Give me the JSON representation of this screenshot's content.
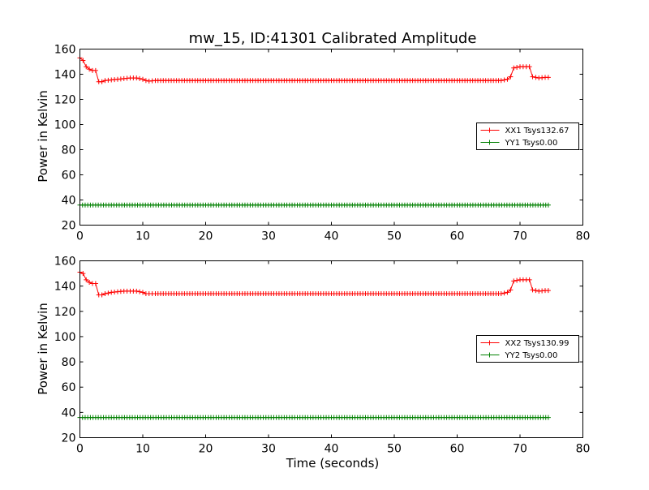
{
  "chart_data": [
    {
      "type": "line",
      "title": "mw_15, ID:41301 Calibrated Amplitude",
      "xlabel": "",
      "ylabel": "Power in Kelvin",
      "xlim": [
        0,
        80
      ],
      "ylim": [
        20,
        160
      ],
      "xticks": [
        "0",
        "10",
        "20",
        "30",
        "40",
        "50",
        "60",
        "70",
        "80"
      ],
      "yticks": [
        "20",
        "40",
        "60",
        "80",
        "100",
        "120",
        "140",
        "160"
      ],
      "grid": false,
      "legend_position": "center-right",
      "marker": "plus",
      "series": [
        {
          "name": "XX1 Tsys132.67",
          "color": "#ff0000",
          "points": [
            [
              0.0,
              153
            ],
            [
              0.5,
              151
            ],
            [
              1.0,
              146
            ],
            [
              1.5,
              144
            ],
            [
              2.0,
              143
            ],
            [
              2.5,
              143
            ],
            [
              3.0,
              134
            ],
            [
              3.5,
              134
            ],
            [
              4.0,
              135
            ],
            [
              5.0,
              135.5
            ],
            [
              6.0,
              136
            ],
            [
              7.0,
              136.5
            ],
            [
              8.0,
              137
            ],
            [
              9.0,
              137
            ],
            [
              10.0,
              136
            ],
            [
              10.5,
              135
            ],
            [
              11.0,
              134.5
            ],
            [
              12.0,
              135
            ],
            [
              20.0,
              135
            ],
            [
              30.0,
              135
            ],
            [
              40.0,
              135
            ],
            [
              50.0,
              135
            ],
            [
              60.0,
              135
            ],
            [
              67.0,
              135
            ],
            [
              68.0,
              136
            ],
            [
              68.5,
              138
            ],
            [
              69.0,
              145
            ],
            [
              70.0,
              146
            ],
            [
              71.0,
              146
            ],
            [
              71.5,
              146
            ],
            [
              72.0,
              138
            ],
            [
              73.0,
              137
            ],
            [
              74.0,
              137.5
            ],
            [
              74.5,
              137.5
            ]
          ]
        },
        {
          "name": "YY1 Tsys0.00",
          "color": "#008000",
          "points": [
            [
              0.0,
              36
            ],
            [
              10.0,
              36
            ],
            [
              20.0,
              36
            ],
            [
              30.0,
              36
            ],
            [
              40.0,
              36
            ],
            [
              50.0,
              36
            ],
            [
              60.0,
              36
            ],
            [
              70.0,
              36
            ],
            [
              74.5,
              36
            ]
          ]
        }
      ]
    },
    {
      "type": "line",
      "title": "",
      "xlabel": "Time (seconds)",
      "ylabel": "Power in Kelvin",
      "xlim": [
        0,
        80
      ],
      "ylim": [
        20,
        160
      ],
      "xticks": [
        "0",
        "10",
        "20",
        "30",
        "40",
        "50",
        "60",
        "70",
        "80"
      ],
      "yticks": [
        "20",
        "40",
        "60",
        "80",
        "100",
        "120",
        "140",
        "160"
      ],
      "grid": false,
      "legend_position": "center-right",
      "marker": "plus",
      "series": [
        {
          "name": "XX2 Tsys130.99",
          "color": "#ff0000",
          "points": [
            [
              0.0,
              151
            ],
            [
              0.5,
              150
            ],
            [
              1.0,
              145
            ],
            [
              1.5,
              143
            ],
            [
              2.0,
              142
            ],
            [
              2.5,
              142
            ],
            [
              3.0,
              133
            ],
            [
              3.5,
              133
            ],
            [
              4.0,
              134
            ],
            [
              5.0,
              135
            ],
            [
              6.0,
              135.5
            ],
            [
              7.0,
              136
            ],
            [
              8.0,
              136
            ],
            [
              9.0,
              136
            ],
            [
              10.0,
              135
            ],
            [
              10.5,
              134
            ],
            [
              11.0,
              134
            ],
            [
              12.0,
              134
            ],
            [
              20.0,
              134
            ],
            [
              30.0,
              134
            ],
            [
              40.0,
              134
            ],
            [
              50.0,
              134
            ],
            [
              60.0,
              134
            ],
            [
              67.0,
              134
            ],
            [
              68.0,
              135
            ],
            [
              68.5,
              137
            ],
            [
              69.0,
              144
            ],
            [
              70.0,
              145
            ],
            [
              71.0,
              145
            ],
            [
              71.5,
              145
            ],
            [
              72.0,
              137
            ],
            [
              73.0,
              136
            ],
            [
              74.0,
              136.5
            ],
            [
              74.5,
              136.5
            ]
          ]
        },
        {
          "name": "YY2 Tsys0.00",
          "color": "#008000",
          "points": [
            [
              0.0,
              36
            ],
            [
              10.0,
              36
            ],
            [
              20.0,
              36
            ],
            [
              30.0,
              36
            ],
            [
              40.0,
              36
            ],
            [
              50.0,
              36
            ],
            [
              60.0,
              36
            ],
            [
              70.0,
              36
            ],
            [
              74.5,
              36
            ]
          ]
        }
      ]
    }
  ]
}
